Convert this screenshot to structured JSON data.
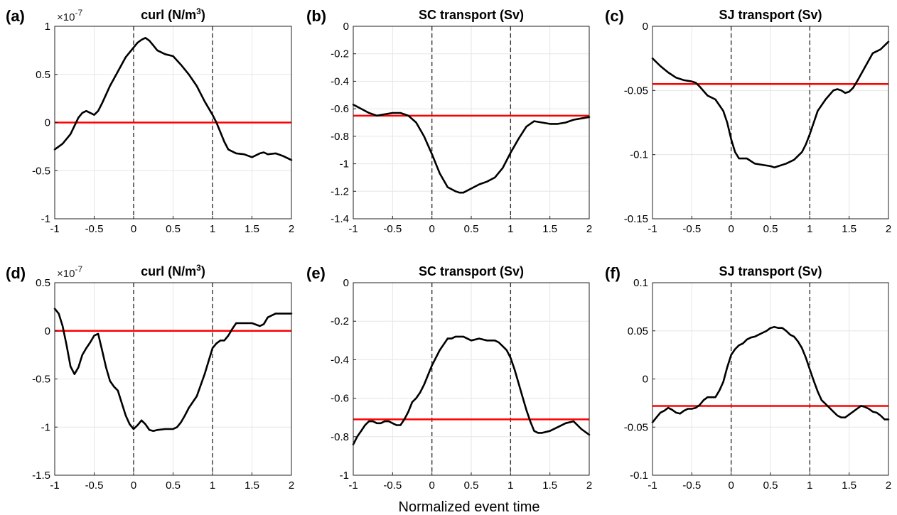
{
  "xlabel": "Normalized event time",
  "colors": {
    "series": "#000000",
    "reference": "#ff0000",
    "grid": "#e6e6e6",
    "frame": "#000000"
  },
  "chart_data": [
    {
      "type": "line",
      "label": "(a)",
      "title": "curl (N/m",
      "title_sup": "3",
      "title_tail": ")",
      "exponent": "×10",
      "exponent_power": "-7",
      "xlim": [
        -1,
        2
      ],
      "ylim": [
        -1,
        1
      ],
      "xticks": [
        "-1",
        "-0.5",
        "0",
        "0.5",
        "1",
        "1.5",
        "2"
      ],
      "yticks": [
        "-1",
        "-0.5",
        "0",
        "0.5",
        "1"
      ],
      "xtick_values": [
        -1,
        -0.5,
        0,
        0.5,
        1,
        1.5,
        2
      ],
      "ytick_values": [
        -1,
        -0.5,
        0,
        0.5,
        1
      ],
      "vlines": [
        0,
        1
      ],
      "reference": 0,
      "x": [
        -1.0,
        -0.9,
        -0.8,
        -0.7,
        -0.65,
        -0.6,
        -0.55,
        -0.5,
        -0.45,
        -0.4,
        -0.3,
        -0.2,
        -0.1,
        0.0,
        0.05,
        0.1,
        0.15,
        0.2,
        0.25,
        0.3,
        0.4,
        0.5,
        0.6,
        0.7,
        0.8,
        0.9,
        1.0,
        1.05,
        1.1,
        1.15,
        1.2,
        1.3,
        1.4,
        1.5,
        1.6,
        1.65,
        1.7,
        1.8,
        1.9,
        2.0
      ],
      "y": [
        -0.28,
        -0.22,
        -0.12,
        0.05,
        0.1,
        0.12,
        0.1,
        0.08,
        0.12,
        0.2,
        0.38,
        0.53,
        0.68,
        0.78,
        0.83,
        0.86,
        0.88,
        0.85,
        0.8,
        0.75,
        0.71,
        0.69,
        0.6,
        0.5,
        0.38,
        0.22,
        0.08,
        0.0,
        -0.1,
        -0.2,
        -0.28,
        -0.32,
        -0.33,
        -0.36,
        -0.32,
        -0.31,
        -0.33,
        -0.32,
        -0.35,
        -0.39
      ]
    },
    {
      "type": "line",
      "label": "(b)",
      "title": "SC transport (Sv)",
      "xlim": [
        -1,
        2
      ],
      "ylim": [
        -1.4,
        0
      ],
      "xticks": [
        "-1",
        "-0.5",
        "0",
        "0.5",
        "1",
        "1.5",
        "2"
      ],
      "yticks": [
        "-1.4",
        "-1.2",
        "-1",
        "-0.8",
        "-0.6",
        "-0.4",
        "-0.2",
        "0"
      ],
      "xtick_values": [
        -1,
        -0.5,
        0,
        0.5,
        1,
        1.5,
        2
      ],
      "ytick_values": [
        -1.4,
        -1.2,
        -1.0,
        -0.8,
        -0.6,
        -0.4,
        -0.2,
        0
      ],
      "vlines": [
        0,
        1
      ],
      "reference": -0.65,
      "x": [
        -1.0,
        -0.9,
        -0.8,
        -0.7,
        -0.6,
        -0.5,
        -0.4,
        -0.3,
        -0.2,
        -0.1,
        0.0,
        0.1,
        0.2,
        0.3,
        0.35,
        0.4,
        0.5,
        0.6,
        0.7,
        0.8,
        0.9,
        1.0,
        1.1,
        1.2,
        1.3,
        1.4,
        1.5,
        1.6,
        1.7,
        1.8,
        1.9,
        2.0
      ],
      "y": [
        -0.57,
        -0.6,
        -0.63,
        -0.65,
        -0.64,
        -0.63,
        -0.63,
        -0.65,
        -0.7,
        -0.8,
        -0.93,
        -1.07,
        -1.17,
        -1.2,
        -1.21,
        -1.21,
        -1.18,
        -1.15,
        -1.13,
        -1.1,
        -1.03,
        -0.92,
        -0.82,
        -0.73,
        -0.69,
        -0.7,
        -0.71,
        -0.71,
        -0.7,
        -0.68,
        -0.67,
        -0.66
      ]
    },
    {
      "type": "line",
      "label": "(c)",
      "title": "SJ transport (Sv)",
      "xlim": [
        -1,
        2
      ],
      "ylim": [
        -0.15,
        0
      ],
      "xticks": [
        "-1",
        "-0.5",
        "0",
        "0.5",
        "1",
        "1.5",
        "2"
      ],
      "yticks": [
        "-0.15",
        "-0.1",
        "-0.05",
        "0"
      ],
      "xtick_values": [
        -1,
        -0.5,
        0,
        0.5,
        1,
        1.5,
        2
      ],
      "ytick_values": [
        -0.15,
        -0.1,
        -0.05,
        0
      ],
      "vlines": [
        0,
        1
      ],
      "reference": -0.045,
      "x": [
        -1.0,
        -0.9,
        -0.8,
        -0.7,
        -0.6,
        -0.5,
        -0.45,
        -0.4,
        -0.3,
        -0.2,
        -0.1,
        -0.05,
        0.0,
        0.05,
        0.1,
        0.2,
        0.3,
        0.4,
        0.5,
        0.55,
        0.6,
        0.7,
        0.8,
        0.9,
        0.95,
        1.0,
        1.05,
        1.1,
        1.2,
        1.3,
        1.35,
        1.4,
        1.45,
        1.5,
        1.55,
        1.6,
        1.7,
        1.8,
        1.9,
        2.0
      ],
      "y": [
        -0.025,
        -0.031,
        -0.036,
        -0.04,
        -0.042,
        -0.043,
        -0.044,
        -0.047,
        -0.054,
        -0.057,
        -0.066,
        -0.075,
        -0.088,
        -0.098,
        -0.103,
        -0.103,
        -0.107,
        -0.108,
        -0.109,
        -0.11,
        -0.109,
        -0.107,
        -0.104,
        -0.098,
        -0.092,
        -0.084,
        -0.075,
        -0.066,
        -0.057,
        -0.05,
        -0.049,
        -0.05,
        -0.052,
        -0.051,
        -0.048,
        -0.043,
        -0.032,
        -0.021,
        -0.018,
        -0.012
      ]
    },
    {
      "type": "line",
      "label": "(d)",
      "title": "curl (N/m",
      "title_sup": "3",
      "title_tail": ")",
      "exponent": "×10",
      "exponent_power": "-7",
      "xlim": [
        -1,
        2
      ],
      "ylim": [
        -1.5,
        0.5
      ],
      "xticks": [
        "-1",
        "-0.5",
        "0",
        "0.5",
        "1",
        "1.5",
        "2"
      ],
      "yticks": [
        "-1.5",
        "-1",
        "-0.5",
        "0",
        "0.5"
      ],
      "xtick_values": [
        -1,
        -0.5,
        0,
        0.5,
        1,
        1.5,
        2
      ],
      "ytick_values": [
        -1.5,
        -1.0,
        -0.5,
        0,
        0.5
      ],
      "vlines": [
        0,
        1
      ],
      "reference": 0,
      "x": [
        -1.0,
        -0.95,
        -0.9,
        -0.85,
        -0.8,
        -0.75,
        -0.7,
        -0.65,
        -0.6,
        -0.55,
        -0.5,
        -0.45,
        -0.4,
        -0.35,
        -0.3,
        -0.25,
        -0.2,
        -0.15,
        -0.1,
        -0.05,
        0.0,
        0.05,
        0.1,
        0.15,
        0.2,
        0.25,
        0.3,
        0.4,
        0.5,
        0.55,
        0.6,
        0.65,
        0.7,
        0.8,
        0.9,
        1.0,
        1.05,
        1.1,
        1.15,
        1.2,
        1.25,
        1.3,
        1.4,
        1.5,
        1.6,
        1.65,
        1.7,
        1.8,
        1.9,
        2.0
      ],
      "y": [
        0.23,
        0.18,
        0.05,
        -0.15,
        -0.37,
        -0.45,
        -0.38,
        -0.25,
        -0.18,
        -0.12,
        -0.05,
        -0.03,
        -0.2,
        -0.38,
        -0.52,
        -0.58,
        -0.62,
        -0.75,
        -0.88,
        -0.97,
        -1.02,
        -0.98,
        -0.93,
        -0.97,
        -1.03,
        -1.04,
        -1.03,
        -1.02,
        -1.02,
        -1.0,
        -0.95,
        -0.88,
        -0.8,
        -0.68,
        -0.45,
        -0.18,
        -0.13,
        -0.1,
        -0.1,
        -0.05,
        0.02,
        0.08,
        0.08,
        0.08,
        0.05,
        0.07,
        0.14,
        0.18,
        0.18,
        0.18
      ]
    },
    {
      "type": "line",
      "label": "(e)",
      "title": "SC transport (Sv)",
      "xlim": [
        -1,
        2
      ],
      "ylim": [
        -1,
        0
      ],
      "xticks": [
        "-1",
        "-0.5",
        "0",
        "0.5",
        "1",
        "1.5",
        "2"
      ],
      "yticks": [
        "-1",
        "-0.8",
        "-0.6",
        "-0.4",
        "-0.2",
        "0"
      ],
      "xtick_values": [
        -1,
        -0.5,
        0,
        0.5,
        1,
        1.5,
        2
      ],
      "ytick_values": [
        -1.0,
        -0.8,
        -0.6,
        -0.4,
        -0.2,
        0
      ],
      "vlines": [
        0,
        1
      ],
      "reference": -0.71,
      "x": [
        -1.0,
        -0.95,
        -0.9,
        -0.85,
        -0.8,
        -0.75,
        -0.7,
        -0.65,
        -0.6,
        -0.55,
        -0.5,
        -0.45,
        -0.4,
        -0.35,
        -0.3,
        -0.25,
        -0.2,
        -0.15,
        -0.1,
        -0.05,
        0.0,
        0.05,
        0.1,
        0.15,
        0.2,
        0.25,
        0.3,
        0.4,
        0.5,
        0.6,
        0.7,
        0.8,
        0.85,
        0.9,
        0.95,
        1.0,
        1.05,
        1.1,
        1.15,
        1.2,
        1.25,
        1.3,
        1.35,
        1.4,
        1.5,
        1.6,
        1.7,
        1.8,
        1.9,
        2.0
      ],
      "y": [
        -0.84,
        -0.8,
        -0.77,
        -0.74,
        -0.72,
        -0.72,
        -0.73,
        -0.73,
        -0.72,
        -0.72,
        -0.73,
        -0.74,
        -0.74,
        -0.71,
        -0.67,
        -0.62,
        -0.6,
        -0.57,
        -0.53,
        -0.48,
        -0.43,
        -0.39,
        -0.35,
        -0.32,
        -0.29,
        -0.29,
        -0.28,
        -0.28,
        -0.3,
        -0.29,
        -0.3,
        -0.3,
        -0.31,
        -0.33,
        -0.35,
        -0.39,
        -0.45,
        -0.52,
        -0.59,
        -0.66,
        -0.72,
        -0.77,
        -0.78,
        -0.78,
        -0.77,
        -0.75,
        -0.73,
        -0.72,
        -0.76,
        -0.79
      ]
    },
    {
      "type": "line",
      "label": "(f)",
      "title": "SJ transport (Sv)",
      "xlim": [
        -1,
        2
      ],
      "ylim": [
        -0.1,
        0.1
      ],
      "xticks": [
        "-1",
        "-0.5",
        "0",
        "0.5",
        "1",
        "1.5",
        "2"
      ],
      "yticks": [
        "-0.1",
        "-0.05",
        "0",
        "0.05",
        "0.1"
      ],
      "xtick_values": [
        -1,
        -0.5,
        0,
        0.5,
        1,
        1.5,
        2
      ],
      "ytick_values": [
        -0.1,
        -0.05,
        0,
        0.05,
        0.1
      ],
      "vlines": [
        0,
        1
      ],
      "reference": -0.028,
      "x": [
        -1.0,
        -0.95,
        -0.9,
        -0.85,
        -0.8,
        -0.75,
        -0.7,
        -0.65,
        -0.6,
        -0.55,
        -0.5,
        -0.45,
        -0.4,
        -0.35,
        -0.3,
        -0.25,
        -0.2,
        -0.15,
        -0.1,
        -0.05,
        0.0,
        0.05,
        0.1,
        0.15,
        0.2,
        0.25,
        0.3,
        0.35,
        0.4,
        0.45,
        0.5,
        0.55,
        0.6,
        0.65,
        0.7,
        0.75,
        0.8,
        0.85,
        0.9,
        0.95,
        1.0,
        1.05,
        1.1,
        1.15,
        1.2,
        1.25,
        1.3,
        1.35,
        1.4,
        1.45,
        1.5,
        1.55,
        1.6,
        1.65,
        1.7,
        1.75,
        1.8,
        1.85,
        1.9,
        1.95,
        2.0
      ],
      "y": [
        -0.045,
        -0.04,
        -0.035,
        -0.033,
        -0.03,
        -0.032,
        -0.035,
        -0.036,
        -0.033,
        -0.031,
        -0.031,
        -0.03,
        -0.027,
        -0.022,
        -0.019,
        -0.019,
        -0.019,
        -0.012,
        -0.003,
        0.012,
        0.025,
        0.031,
        0.035,
        0.037,
        0.041,
        0.043,
        0.044,
        0.046,
        0.048,
        0.05,
        0.053,
        0.054,
        0.053,
        0.053,
        0.05,
        0.046,
        0.044,
        0.039,
        0.032,
        0.022,
        0.01,
        -0.002,
        -0.013,
        -0.022,
        -0.026,
        -0.03,
        -0.034,
        -0.038,
        -0.04,
        -0.04,
        -0.037,
        -0.034,
        -0.031,
        -0.028,
        -0.029,
        -0.031,
        -0.034,
        -0.035,
        -0.038,
        -0.042,
        -0.042
      ]
    }
  ]
}
